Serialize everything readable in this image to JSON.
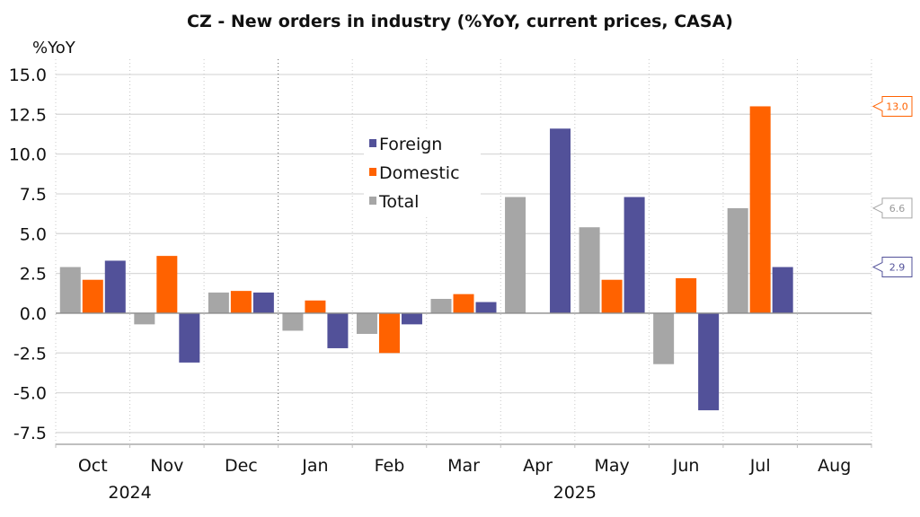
{
  "chart_data": {
    "type": "bar",
    "title": "CZ - New orders in industry (%YoY, current prices, CASA)",
    "ylabel": "%YoY",
    "xlabel": "",
    "ylim": [
      -9.0,
      15.0
    ],
    "yticks": [
      "15.0",
      "12.5",
      "10.0",
      "7.5",
      "5.0",
      "2.5",
      "0.0",
      "-2.5",
      "-5.0",
      "-7.5"
    ],
    "ytick_values": [
      15.0,
      12.5,
      10.0,
      7.5,
      5.0,
      2.5,
      0.0,
      -2.5,
      -5.0,
      -7.5
    ],
    "grid": true,
    "categories": [
      "Oct",
      "Nov",
      "Dec",
      "Jan",
      "Feb",
      "Mar",
      "Apr",
      "May",
      "Jun",
      "Jul",
      "Aug"
    ],
    "year_labels": [
      {
        "label": "2024",
        "under_category_boundary": "Oct-Nov"
      },
      {
        "label": "2025",
        "under_category_boundary": "Apr-May"
      }
    ],
    "year_separator_after": "Dec",
    "legend_position": "top-center",
    "series": [
      {
        "name": "Total",
        "color": "#a6a6a6",
        "values": [
          2.9,
          -0.7,
          1.3,
          -1.1,
          -1.3,
          0.9,
          7.3,
          5.4,
          -3.2,
          6.6,
          null
        ]
      },
      {
        "name": "Domestic",
        "color": "#ff6200",
        "values": [
          2.1,
          3.6,
          1.4,
          0.8,
          -2.5,
          1.2,
          0.0,
          2.1,
          2.2,
          13.0,
          null
        ]
      },
      {
        "name": "Foreign",
        "color": "#525199",
        "values": [
          3.3,
          -3.1,
          1.3,
          -2.2,
          -0.7,
          0.7,
          11.6,
          7.3,
          -6.1,
          2.9,
          null
        ]
      }
    ],
    "legend": [
      "Foreign",
      "Domestic",
      "Total"
    ],
    "callouts": [
      {
        "series": "Domestic",
        "label": "13.0",
        "value": 13.0,
        "color": "#ff6200"
      },
      {
        "series": "Total",
        "label": "6.6",
        "value": 6.6,
        "color": "#a6a6a6"
      },
      {
        "series": "Foreign",
        "label": "2.9",
        "value": 2.9,
        "color": "#525199"
      }
    ]
  }
}
